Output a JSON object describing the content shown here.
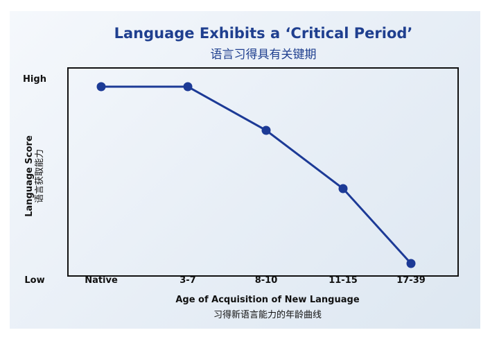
{
  "chart_data": {
    "type": "line",
    "title": "Language Exhibits a ‘Critical Period’",
    "subtitle": "语言习得具有关键期",
    "xlabel": "Age of Acquisition of New Language",
    "xlabel_sub": "习得新语言能力的年龄曲线",
    "ylabel": "Language Score",
    "ylabel_sub": "语言获取能力",
    "ytick_high": "High",
    "ytick_low": "Low",
    "categories": [
      "Native",
      "3-7",
      "8-10",
      "11-15",
      "17-39"
    ],
    "values": [
      0.91,
      0.91,
      0.7,
      0.42,
      0.06
    ],
    "ylim": [
      0,
      1
    ],
    "line_color": "#1c3a96",
    "grid": false
  }
}
